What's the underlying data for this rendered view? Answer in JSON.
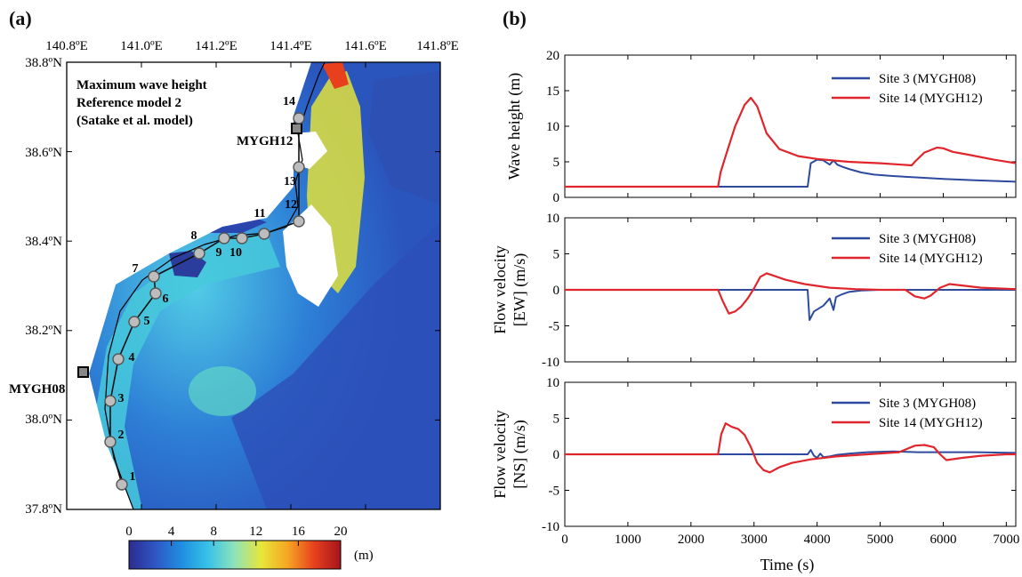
{
  "panel_a": {
    "label": "(a)",
    "lon_labels": [
      "140.8ºE",
      "141.0ºE",
      "141.2ºE",
      "141.4ºE",
      "141.6ºE",
      "141.8ºE"
    ],
    "lat_labels": [
      "38.8ºN",
      "38.6ºN",
      "38.4ºN",
      "38.2ºN",
      "38.0ºN",
      "37.8ºN"
    ],
    "title_lines": [
      "Maximum wave height",
      "Reference model 2",
      "(Satake et al. model)"
    ],
    "site_numbers": [
      "1",
      "2",
      "3",
      "4",
      "5",
      "6",
      "7",
      "8",
      "9",
      "10",
      "11",
      "12",
      "13",
      "14"
    ],
    "station_labels": {
      "mygh12": "MYGH12",
      "mygh08": "MYGH08"
    },
    "colorbar": {
      "ticks": [
        "0",
        "4",
        "8",
        "12",
        "16",
        "20"
      ],
      "unit": "(m)",
      "range": [
        0,
        20
      ],
      "colors": [
        "#2b2c8f",
        "#2f56c4",
        "#1f8fe0",
        "#38c3e8",
        "#8fe3b8",
        "#e8e63a",
        "#f5a623",
        "#e8401c",
        "#a5151c"
      ]
    }
  },
  "panel_b": {
    "label": "(b)",
    "xlabel": "Time (s)",
    "xticks": [
      "0",
      "1000",
      "2000",
      "3000",
      "4000",
      "5000",
      "6000",
      "7000"
    ],
    "series_colors": {
      "site3": "#2e4a9e",
      "site14": "#e0262c"
    }
  },
  "chart_data": [
    {
      "type": "line",
      "ylabel": "Wave height (m)",
      "xlim": [
        0,
        7150
      ],
      "ylim": [
        0,
        20
      ],
      "yticks": [
        "0",
        "5",
        "10",
        "15",
        "20"
      ],
      "series": [
        {
          "name": "Site 3 (MYGH08)",
          "x": [
            0,
            3850,
            3900,
            4000,
            4100,
            4200,
            4260,
            4320,
            4400,
            4500,
            4700,
            4900,
            5200,
            5600,
            6000,
            6500,
            7150
          ],
          "y": [
            1.5,
            1.5,
            4.8,
            5.3,
            5.2,
            4.6,
            5.2,
            4.6,
            4.3,
            4.0,
            3.5,
            3.2,
            3.0,
            2.8,
            2.6,
            2.4,
            2.2
          ]
        },
        {
          "name": "Site 14 (MYGH12)",
          "x": [
            0,
            2430,
            2470,
            2550,
            2700,
            2850,
            2950,
            3050,
            3200,
            3400,
            3700,
            4000,
            4500,
            5000,
            5500,
            5550,
            5700,
            5900,
            6000,
            6150,
            6400,
            6800,
            7150
          ],
          "y": [
            1.5,
            1.5,
            3.5,
            5.8,
            10.0,
            13.0,
            14.0,
            12.8,
            9.0,
            6.8,
            5.8,
            5.4,
            5.0,
            4.8,
            4.5,
            5.0,
            6.3,
            7.0,
            6.9,
            6.4,
            6.0,
            5.3,
            4.8
          ]
        }
      ]
    },
    {
      "type": "line",
      "ylabel": "Flow velocity [EW] (m/s)",
      "xlim": [
        0,
        7150
      ],
      "ylim": [
        -10,
        10
      ],
      "yticks": [
        "-10",
        "-5",
        "0",
        "5",
        "10"
      ],
      "series": [
        {
          "name": "Site 3 (MYGH08)",
          "x": [
            0,
            3850,
            3880,
            3950,
            4100,
            4200,
            4260,
            4300,
            4400,
            4500,
            4700,
            5000,
            5500,
            6000,
            6500,
            7150
          ],
          "y": [
            0,
            0,
            -4.2,
            -3.0,
            -2.2,
            -1.2,
            -2.8,
            -1.0,
            -0.6,
            -0.3,
            -0.1,
            0.0,
            0.0,
            0.0,
            0.0,
            0.0
          ]
        },
        {
          "name": "Site 14 (MYGH12)",
          "x": [
            0,
            2430,
            2500,
            2600,
            2700,
            2800,
            2900,
            3000,
            3100,
            3200,
            3300,
            3500,
            3800,
            4200,
            4600,
            5000,
            5400,
            5550,
            5700,
            5800,
            5950,
            6100,
            6300,
            6600,
            7150
          ],
          "y": [
            0,
            0,
            -1.5,
            -3.3,
            -3.0,
            -2.3,
            -1.2,
            0.2,
            1.8,
            2.3,
            2.0,
            1.4,
            0.8,
            0.3,
            0.1,
            0.0,
            0.0,
            -0.9,
            -1.2,
            -0.8,
            0.3,
            0.8,
            0.6,
            0.3,
            0.1
          ]
        }
      ]
    },
    {
      "type": "line",
      "ylabel": "Flow velocity [NS] (m/s)",
      "xlim": [
        0,
        7150
      ],
      "ylim": [
        -10,
        10
      ],
      "yticks": [
        "-10",
        "-5",
        "0",
        "5",
        "10"
      ],
      "series": [
        {
          "name": "Site 3 (MYGH08)",
          "x": [
            0,
            3850,
            3900,
            3950,
            4000,
            4050,
            4100,
            4200,
            4300,
            4500,
            4800,
            5200,
            5600,
            6000,
            6500,
            7150
          ],
          "y": [
            0,
            0,
            0.6,
            -0.2,
            -0.5,
            0.1,
            -0.4,
            -0.3,
            -0.1,
            0.1,
            0.3,
            0.4,
            0.3,
            0.3,
            0.3,
            0.2
          ]
        },
        {
          "name": "Site 14 (MYGH12)",
          "x": [
            0,
            2430,
            2480,
            2550,
            2650,
            2750,
            2850,
            2950,
            3050,
            3150,
            3250,
            3400,
            3600,
            3900,
            4300,
            4800,
            5300,
            5550,
            5700,
            5850,
            5950,
            6050,
            6300,
            6600,
            7000,
            7150
          ],
          "y": [
            0,
            0,
            2.8,
            4.3,
            3.8,
            3.5,
            2.7,
            1.0,
            -1.2,
            -2.2,
            -2.5,
            -1.8,
            -1.2,
            -0.7,
            -0.3,
            0.0,
            0.3,
            1.2,
            1.3,
            1.0,
            0.0,
            -0.8,
            -0.5,
            -0.2,
            0.0,
            0.0
          ]
        }
      ]
    }
  ]
}
